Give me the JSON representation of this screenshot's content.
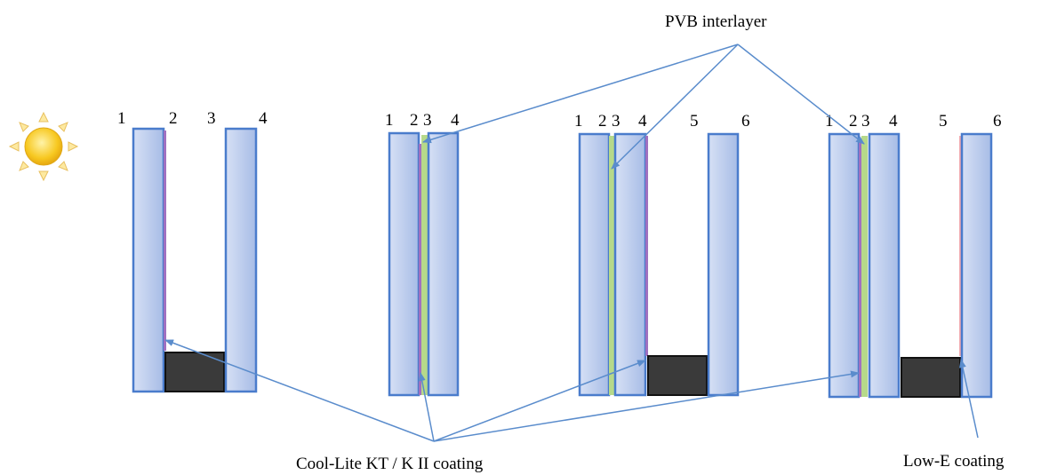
{
  "labels": {
    "pvb": "PVB interlayer",
    "coolite": "Cool-Lite KT / K II coating",
    "lowe": "Low-E coating"
  },
  "surface_numbers": {
    "unit1": [
      "1",
      "2",
      "3",
      "4"
    ],
    "unit2": [
      "1",
      "2",
      "3",
      "4"
    ],
    "unit3": [
      "1",
      "2",
      "3",
      "4",
      "5",
      "6"
    ],
    "unit4": [
      "1",
      "2",
      "3",
      "4",
      "5",
      "6"
    ]
  },
  "icons": {
    "sun": "sun-icon"
  },
  "colors": {
    "glass_fill": "#b9c8ea",
    "glass_stroke": "#4a7ccc",
    "coating": "#a070c0",
    "pvb": "#b6d98a",
    "lowe": "#f2aab0",
    "spacer": "#3a3a3a",
    "arrow": "#5a8ccc",
    "sun": "#f4c020"
  }
}
